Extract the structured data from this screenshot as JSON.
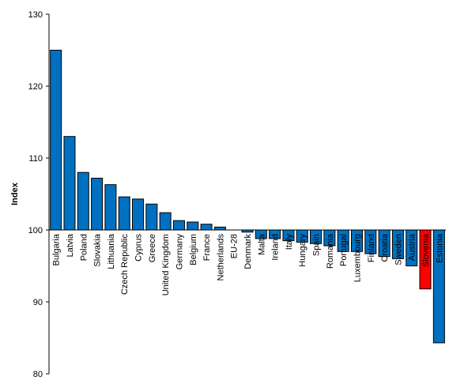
{
  "chart_data": {
    "type": "bar",
    "title": "",
    "xlabel": "",
    "ylabel": "Index",
    "ylim": [
      80,
      130
    ],
    "yticks": [
      80,
      90,
      100,
      110,
      120,
      130
    ],
    "baseline": 100,
    "grid": "none",
    "categories": [
      "Bulgaria",
      "Latvia",
      "Poland",
      "Slovakia",
      "Lithuania",
      "Czech Republic",
      "Cyprus",
      "Greece",
      "United Kingdom",
      "Germany",
      "Belgium",
      "France",
      "Netherlands",
      "EU-28",
      "Denmark",
      "Malta",
      "Ireland",
      "Italy",
      "Hungary",
      "Spain",
      "Romania",
      "Portugal",
      "Luxembourg",
      "Finland",
      "Croatia",
      "Sweden",
      "Austria",
      "Slovenia",
      "Estonia"
    ],
    "values": [
      125.0,
      113.0,
      108.0,
      107.2,
      106.3,
      104.6,
      104.3,
      103.6,
      102.4,
      101.3,
      101.1,
      100.8,
      100.4,
      100.0,
      99.7,
      98.8,
      98.8,
      98.5,
      98.3,
      98.1,
      97.8,
      97.0,
      97.0,
      96.7,
      96.3,
      96.0,
      95.0,
      91.8,
      84.3
    ],
    "colors": {
      "default": "#0070C0",
      "highlight": "#FF0000",
      "highlight_category": "Slovenia",
      "bar_outline": "#000000"
    }
  }
}
